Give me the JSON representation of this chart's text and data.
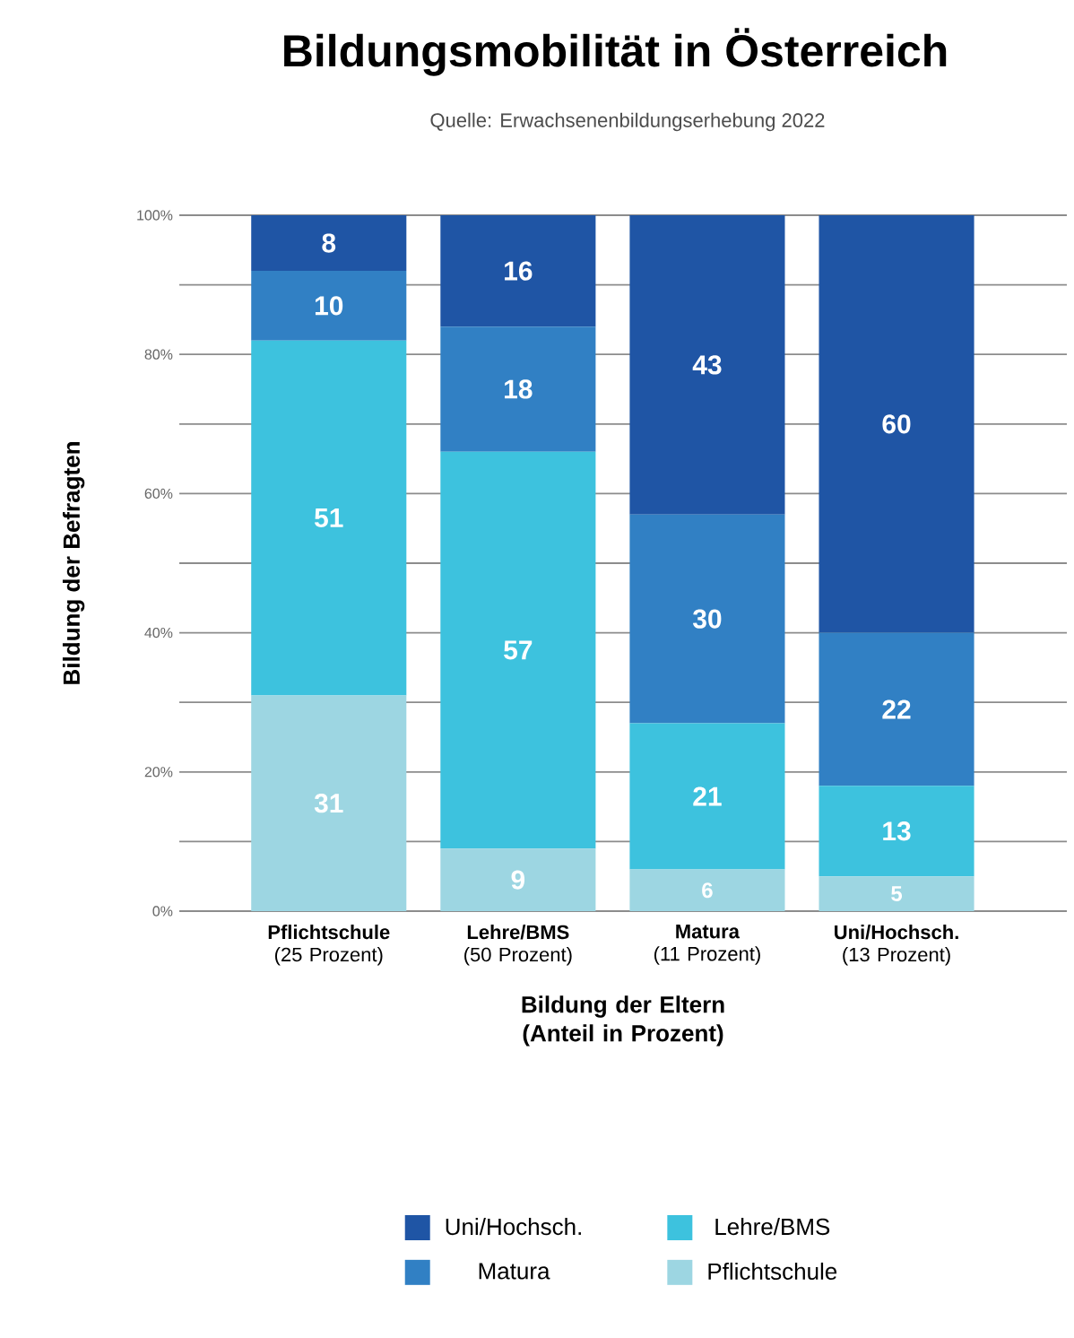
{
  "chart_data": {
    "type": "bar",
    "stacked": true,
    "title": "Bildungsmobilität in Österreich",
    "subtitle": "Quelle: Erwachsenenbildungserhebung 2022",
    "xlabel": "Bildung der Eltern (Anteil in Prozent)",
    "ylabel": "Bildung der Befragten",
    "categories": [
      "**Pflichtschule**\n(25 Prozent)",
      "**Lehre/BMS**\n(50 Prozent)",
      "**Matura**\n(11 Prozent)",
      "**Uni/Hochsch.**\n(13 Prozent)"
    ],
    "series": [
      {
        "name": "Pflichtschule",
        "color": "#9dd6e2",
        "values": [
          31,
          9,
          6,
          5
        ]
      },
      {
        "name": "Lehre/BMS",
        "color": "#3dc2de",
        "values": [
          51,
          57,
          21,
          13
        ]
      },
      {
        "name": "Matura",
        "color": "#3180c4",
        "values": [
          10,
          18,
          30,
          22
        ]
      },
      {
        "name": "Uni/Hochsch.",
        "color": "#1f55a5",
        "values": [
          8,
          16,
          43,
          60
        ]
      }
    ],
    "ylim": [
      0,
      100
    ],
    "yticks": [
      {
        "value": 0,
        "label": "0%"
      },
      {
        "value": 10,
        "label": null
      },
      {
        "value": 20,
        "label": "20%"
      },
      {
        "value": 30,
        "label": null
      },
      {
        "value": 40,
        "label": "40%"
      },
      {
        "value": 50,
        "label": null
      },
      {
        "value": 60,
        "label": "60%"
      },
      {
        "value": 70,
        "label": null
      },
      {
        "value": 80,
        "label": "80%"
      },
      {
        "value": 90,
        "label": null
      },
      {
        "value": 100,
        "label": "100%"
      }
    ],
    "grid": "y",
    "legend": "bottom",
    "data_labels": true
  }
}
